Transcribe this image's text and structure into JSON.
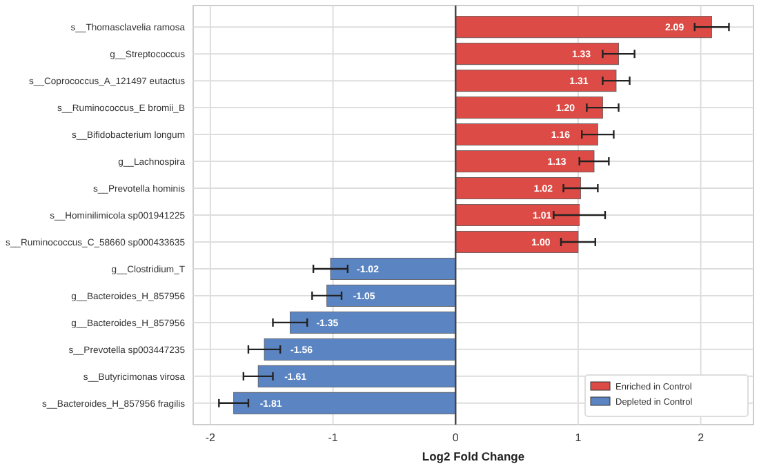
{
  "chart_data": {
    "type": "bar",
    "orientation": "horizontal",
    "xlabel": "Log2 Fold Change",
    "categories": [
      "s__Thomasclavelia ramosa",
      "g__Streptococcus",
      "s__Coprococcus_A_121497 eutactus",
      "s__Ruminococcus_E bromii_B",
      "s__Bifidobacterium longum",
      "g__Lachnospira",
      "s__Prevotella hominis",
      "s__Hominilimicola sp001941225",
      "s__Ruminococcus_C_58660 sp000433635",
      "g__Clostridium_T",
      "g__Bacteroides_H_857956",
      "g__Bacteroides_H_857956",
      "s__Prevotella sp003447235",
      "s__Butyricimonas virosa",
      "s__Bacteroides_H_857956 fragilis"
    ],
    "series": [
      {
        "name": "Enriched in Control",
        "color": "#dc4b45",
        "values": [
          2.09,
          1.33,
          1.31,
          1.2,
          1.16,
          1.13,
          1.02,
          1.01,
          1.0,
          null,
          null,
          null,
          null,
          null,
          null
        ],
        "value_labels": [
          "2.09",
          "1.33",
          "1.31",
          "1.20",
          "1.16",
          "1.13",
          "1.02",
          "1.01",
          "1.00",
          null,
          null,
          null,
          null,
          null,
          null
        ],
        "errors": [
          0.14,
          0.13,
          0.11,
          0.13,
          0.13,
          0.12,
          0.14,
          0.21,
          0.14,
          null,
          null,
          null,
          null,
          null,
          null
        ]
      },
      {
        "name": "Depleted in Control",
        "color": "#5b84c2",
        "values": [
          null,
          null,
          null,
          null,
          null,
          null,
          null,
          null,
          null,
          -1.02,
          -1.05,
          -1.35,
          -1.56,
          -1.61,
          -1.81
        ],
        "value_labels": [
          null,
          null,
          null,
          null,
          null,
          null,
          null,
          null,
          null,
          "-1.02",
          "-1.05",
          "-1.35",
          "-1.56",
          "-1.61",
          "-1.81"
        ],
        "errors": [
          null,
          null,
          null,
          null,
          null,
          null,
          null,
          null,
          null,
          0.14,
          0.12,
          0.14,
          0.13,
          0.12,
          0.12
        ]
      }
    ],
    "xlim": [
      -2.14,
      2.43
    ],
    "xticks": [
      -2,
      -1,
      0,
      1,
      2
    ],
    "ref_lines": [
      {
        "axis": "x",
        "value": 0,
        "color": "#444444"
      }
    ],
    "grid": true,
    "legend": "bottom right"
  }
}
